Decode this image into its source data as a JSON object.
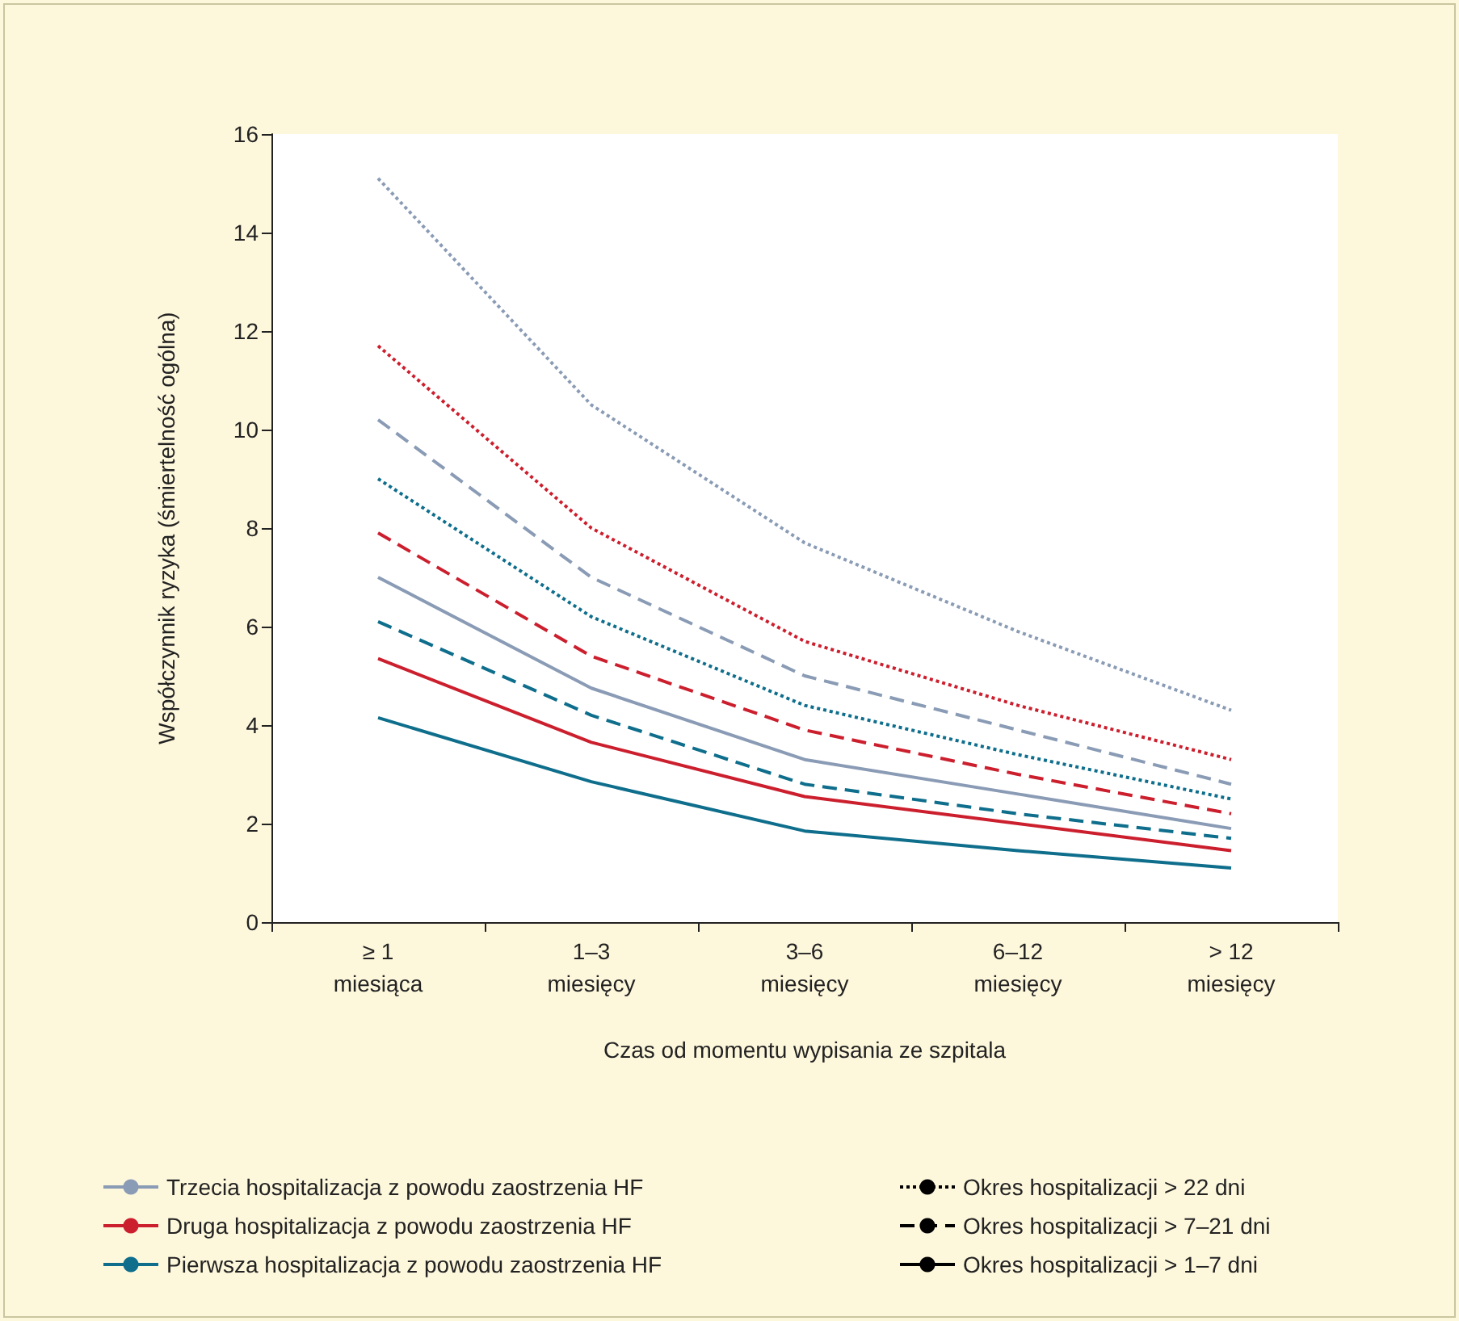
{
  "chart_data": {
    "type": "line",
    "xlabel": "Czas od momentu wypisania ze szpitala",
    "ylabel": "Współczynnik ryzyka (śmiertelność ogólna)",
    "categories": [
      "≥ 1\nmiesiąca",
      "1–3\nmiesięcy",
      "3–6\nmiesięcy",
      "6–12\nmiesięcy",
      "> 12\nmiesięcy"
    ],
    "ylim": [
      0,
      16
    ],
    "yticks": [
      0,
      2,
      4,
      6,
      8,
      10,
      12,
      14,
      16
    ],
    "grid": false,
    "legend": "bottom",
    "marker": "none",
    "series": [
      {
        "color": "#8a9bb5",
        "line_style": "dotted",
        "values": [
          15.1,
          10.5,
          7.7,
          5.9,
          4.3
        ]
      },
      {
        "color": "#cc1f2e",
        "line_style": "dotted",
        "values": [
          11.7,
          8.0,
          5.7,
          4.4,
          3.3
        ]
      },
      {
        "color": "#8a9bb5",
        "line_style": "dashed",
        "values": [
          10.2,
          7.0,
          5.0,
          3.9,
          2.8
        ]
      },
      {
        "color": "#0e6e8c",
        "line_style": "dotted",
        "values": [
          9.0,
          6.2,
          4.4,
          3.4,
          2.5
        ]
      },
      {
        "color": "#cc1f2e",
        "line_style": "dashed",
        "values": [
          7.9,
          5.4,
          3.9,
          3.0,
          2.2
        ]
      },
      {
        "color": "#8a9bb5",
        "line_style": "solid",
        "values": [
          7.0,
          4.75,
          3.3,
          2.6,
          1.9
        ]
      },
      {
        "color": "#0e6e8c",
        "line_style": "dashed",
        "values": [
          6.1,
          4.2,
          2.8,
          2.2,
          1.7
        ]
      },
      {
        "color": "#cc1f2e",
        "line_style": "solid",
        "values": [
          5.35,
          3.65,
          2.55,
          2.0,
          1.45
        ]
      },
      {
        "color": "#0e6e8c",
        "line_style": "solid",
        "values": [
          4.15,
          2.85,
          1.85,
          1.45,
          1.1
        ]
      },
      {
        "name": "Trzecia hospitalizacja z powodu zaostrzenia HF",
        "color": "#8a9bb5",
        "line_style": "solid",
        "values": [
          null,
          null,
          null,
          null,
          null
        ]
      },
      {
        "name": "Druga hospitalizacja z powodu zaostrzenia HF",
        "color": "#cc1f2e",
        "line_style": "solid",
        "values": [
          null,
          null,
          null,
          null,
          null
        ]
      },
      {
        "name": "Pierwsza hospitalizacja z powodu zaostrzenia HF",
        "color": "#0e6e8c",
        "line_style": "solid",
        "values": [
          null,
          null,
          null,
          null,
          null
        ]
      },
      {
        "name": "Okres hospitalizacji > 22 dni",
        "color": "#000000",
        "line_style": "dotted",
        "values": [
          null,
          null,
          null,
          null,
          null
        ]
      },
      {
        "name": "Okres hospitalizacji > 7–21 dni",
        "color": "#000000",
        "line_style": "dashed",
        "values": [
          null,
          null,
          null,
          null,
          null
        ]
      },
      {
        "name": "Okres hospitalizacji > 1–7 dni",
        "color": "#000000",
        "line_style": "solid",
        "values": [
          null,
          null,
          null,
          null,
          null
        ]
      }
    ]
  }
}
